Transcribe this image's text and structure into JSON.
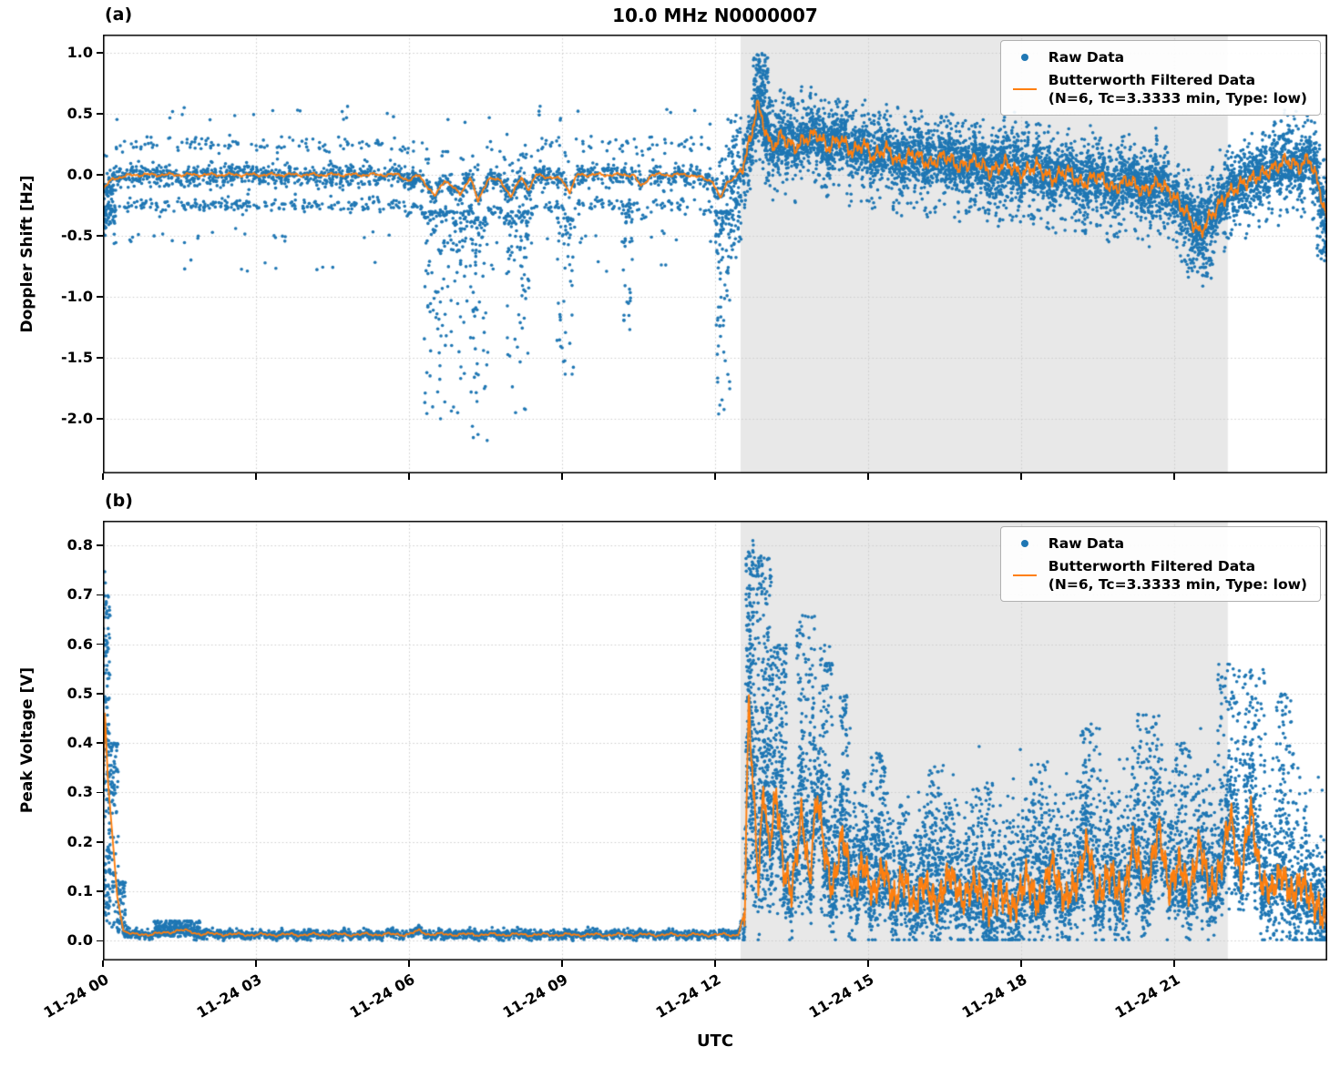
{
  "title": "10.0 MHz N0000007",
  "xlabel": "UTC",
  "panel_a_label": "(a)",
  "panel_b_label": "(b)",
  "legend": {
    "raw_label": "Raw Data",
    "filtered_label": "Butterworth Filtered Data",
    "filtered_sublabel": "(N=6, Tc=3.3333 min, Type: low)"
  },
  "colors": {
    "raw": "#1f77b4",
    "filtered": "#ff7f0e",
    "shade": "#e8e8e8",
    "grid": "#cccccc",
    "spine": "#000000"
  },
  "chart_data": [
    {
      "id": "a",
      "type": "scatter",
      "title": "10.0 MHz N0000007",
      "ylabel": "Doppler Shift [Hz]",
      "xlim": [
        0,
        24
      ],
      "ylim": [
        -2.45,
        1.15
      ],
      "yticks": [
        {
          "v": 1.0,
          "label": "1.0"
        },
        {
          "v": 0.5,
          "label": "0.5"
        },
        {
          "v": 0.0,
          "label": "0.0"
        },
        {
          "v": -0.5,
          "label": "-0.5"
        },
        {
          "v": -1.0,
          "label": "-1.0"
        },
        {
          "v": -1.5,
          "label": "-1.5"
        },
        {
          "v": -2.0,
          "label": "-2.0"
        }
      ],
      "xticks": [
        {
          "v": 0,
          "label": "11-24 00"
        },
        {
          "v": 3,
          "label": "11-24 03"
        },
        {
          "v": 6,
          "label": "11-24 06"
        },
        {
          "v": 9,
          "label": "11-24 09"
        },
        {
          "v": 12,
          "label": "11-24 12"
        },
        {
          "v": 15,
          "label": "11-24 15"
        },
        {
          "v": 18,
          "label": "11-24 18"
        },
        {
          "v": 21,
          "label": "11-24 21"
        }
      ],
      "show_xtick_labels": false,
      "shade": {
        "x0": 12.5,
        "x1": 22.05
      },
      "seed": 42,
      "line": [
        [
          0,
          -0.12
        ],
        [
          0.2,
          -0.03
        ],
        [
          0.6,
          0.0
        ],
        [
          5.8,
          0.0
        ],
        [
          6.0,
          -0.05
        ],
        [
          6.2,
          0.0
        ],
        [
          6.5,
          -0.18
        ],
        [
          6.7,
          -0.04
        ],
        [
          7.0,
          -0.16
        ],
        [
          7.2,
          -0.02
        ],
        [
          7.35,
          -0.22
        ],
        [
          7.55,
          -0.03
        ],
        [
          7.8,
          -0.05
        ],
        [
          8.0,
          -0.18
        ],
        [
          8.2,
          -0.02
        ],
        [
          8.35,
          -0.12
        ],
        [
          8.5,
          0.0
        ],
        [
          9.0,
          -0.04
        ],
        [
          9.15,
          -0.14
        ],
        [
          9.3,
          0.0
        ],
        [
          10.4,
          0.0
        ],
        [
          10.55,
          -0.1
        ],
        [
          10.75,
          0.0
        ],
        [
          11.5,
          0.0
        ],
        [
          11.95,
          -0.05
        ],
        [
          12.1,
          -0.2
        ],
        [
          12.25,
          -0.05
        ],
        [
          12.4,
          -0.02
        ],
        [
          12.55,
          0.08
        ],
        [
          12.7,
          0.3
        ],
        [
          12.82,
          0.58
        ],
        [
          12.95,
          0.42
        ],
        [
          13.1,
          0.22
        ],
        [
          13.3,
          0.32
        ],
        [
          13.55,
          0.22
        ],
        [
          13.8,
          0.3
        ],
        [
          14.0,
          0.34
        ],
        [
          14.2,
          0.22
        ],
        [
          14.45,
          0.3
        ],
        [
          14.7,
          0.18
        ],
        [
          14.9,
          0.26
        ],
        [
          15.1,
          0.14
        ],
        [
          15.35,
          0.22
        ],
        [
          15.6,
          0.1
        ],
        [
          15.9,
          0.18
        ],
        [
          16.2,
          0.08
        ],
        [
          16.5,
          0.16
        ],
        [
          16.8,
          0.06
        ],
        [
          17.1,
          0.12
        ],
        [
          17.4,
          0.02
        ],
        [
          17.7,
          0.1
        ],
        [
          18.0,
          0.0
        ],
        [
          18.3,
          0.08
        ],
        [
          18.6,
          -0.04
        ],
        [
          18.9,
          0.04
        ],
        [
          19.2,
          -0.08
        ],
        [
          19.5,
          0.0
        ],
        [
          19.8,
          -0.12
        ],
        [
          20.1,
          -0.04
        ],
        [
          20.4,
          -0.14
        ],
        [
          20.7,
          -0.06
        ],
        [
          21.0,
          -0.18
        ],
        [
          21.25,
          -0.32
        ],
        [
          21.5,
          -0.48
        ],
        [
          21.75,
          -0.32
        ],
        [
          22.0,
          -0.18
        ],
        [
          22.3,
          -0.08
        ],
        [
          22.6,
          -0.02
        ],
        [
          22.9,
          0.04
        ],
        [
          23.2,
          0.12
        ],
        [
          23.45,
          0.06
        ],
        [
          23.65,
          0.14
        ],
        [
          23.8,
          -0.05
        ],
        [
          23.9,
          -0.2
        ],
        [
          24,
          -0.38
        ]
      ],
      "wiggle": [
        {
          "t0": 0,
          "t1": 12.5,
          "amp": 0.013,
          "period": 0.4
        },
        {
          "t0": 12.5,
          "t1": 24,
          "amp": 0.055,
          "period": 0.21
        }
      ],
      "scatter": [
        {
          "t0": 0,
          "t1": 12.55,
          "n": 2300,
          "sigma": 0.045,
          "bands": [
            {
              "off": -0.25,
              "frac": 0.2
            },
            {
              "off": 0.25,
              "frac": 0.09
            },
            {
              "off": -0.5,
              "frac": 0.025
            },
            {
              "off": 0.5,
              "frac": 0.012
            },
            {
              "off": -0.75,
              "frac": 0.006
            }
          ]
        },
        {
          "t0": 12.55,
          "t1": 24,
          "n": 6500,
          "sigma": 0.12,
          "bands": [
            {
              "off": 0.33,
              "frac": 0.03
            },
            {
              "off": -0.38,
              "frac": 0.03
            }
          ]
        }
      ],
      "clusters": [
        {
          "t0": 0.0,
          "t1": 0.25,
          "vmin": -0.5,
          "vmax": -0.08,
          "n": 70,
          "bias": 1.2
        },
        {
          "t0": 6.3,
          "t1": 7.15,
          "vmin": -2.05,
          "vmax": -0.3,
          "n": 130,
          "bias": 2.2
        },
        {
          "t0": 7.2,
          "t1": 7.55,
          "vmin": -2.32,
          "vmax": -0.35,
          "n": 70,
          "bias": 2.0
        },
        {
          "t0": 7.9,
          "t1": 8.35,
          "vmin": -2.0,
          "vmax": -0.3,
          "n": 80,
          "bias": 2.2
        },
        {
          "t0": 8.9,
          "t1": 9.25,
          "vmin": -1.65,
          "vmax": -0.35,
          "n": 50,
          "bias": 2.0
        },
        {
          "t0": 10.2,
          "t1": 10.4,
          "vmin": -1.35,
          "vmax": -0.3,
          "n": 30,
          "bias": 2.0
        },
        {
          "t0": 12.0,
          "t1": 12.3,
          "vmin": -2.0,
          "vmax": -0.3,
          "n": 90,
          "bias": 2.0
        },
        {
          "t0": 12.3,
          "t1": 12.52,
          "vmin": -0.7,
          "vmax": 0.5,
          "n": 70,
          "bias": 1.0
        },
        {
          "t0": 12.75,
          "t1": 13.05,
          "vmin": 0.3,
          "vmax": 1.0,
          "n": 130,
          "bias": 1.1
        },
        {
          "t0": 21.2,
          "t1": 21.8,
          "vmin": -0.85,
          "vmax": -0.2,
          "n": 90,
          "bias": 1.5
        },
        {
          "t0": 23.8,
          "t1": 24.0,
          "vmin": -0.75,
          "vmax": -0.1,
          "n": 50,
          "bias": 1.3
        }
      ]
    },
    {
      "id": "b",
      "type": "scatter",
      "ylabel": "Peak Voltage [V]",
      "xlim": [
        0,
        24
      ],
      "ylim": [
        -0.04,
        0.85
      ],
      "yticks": [
        {
          "v": 0.8,
          "label": "0.8"
        },
        {
          "v": 0.7,
          "label": "0.7"
        },
        {
          "v": 0.6,
          "label": "0.6"
        },
        {
          "v": 0.5,
          "label": "0.5"
        },
        {
          "v": 0.4,
          "label": "0.4"
        },
        {
          "v": 0.3,
          "label": "0.3"
        },
        {
          "v": 0.2,
          "label": "0.2"
        },
        {
          "v": 0.1,
          "label": "0.1"
        },
        {
          "v": 0.0,
          "label": "0.0"
        }
      ],
      "xticks": [
        {
          "v": 0,
          "label": "11-24 00"
        },
        {
          "v": 3,
          "label": "11-24 03"
        },
        {
          "v": 6,
          "label": "11-24 06"
        },
        {
          "v": 9,
          "label": "11-24 09"
        },
        {
          "v": 12,
          "label": "11-24 12"
        },
        {
          "v": 15,
          "label": "11-24 15"
        },
        {
          "v": 18,
          "label": "11-24 18"
        },
        {
          "v": 21,
          "label": "11-24 21"
        }
      ],
      "show_xtick_labels": true,
      "shade": {
        "x0": 12.5,
        "x1": 22.05
      },
      "seed": 7,
      "line": [
        [
          0,
          0.3
        ],
        [
          0.04,
          0.46
        ],
        [
          0.1,
          0.32
        ],
        [
          0.18,
          0.22
        ],
        [
          0.28,
          0.09
        ],
        [
          0.4,
          0.02
        ],
        [
          0.6,
          0.012
        ],
        [
          1.2,
          0.015
        ],
        [
          1.5,
          0.022
        ],
        [
          1.9,
          0.014
        ],
        [
          3.0,
          0.012
        ],
        [
          6.0,
          0.013
        ],
        [
          6.2,
          0.02
        ],
        [
          6.4,
          0.013
        ],
        [
          9.0,
          0.012
        ],
        [
          12.45,
          0.012
        ],
        [
          12.58,
          0.06
        ],
        [
          12.66,
          0.49
        ],
        [
          12.75,
          0.3
        ],
        [
          12.85,
          0.12
        ],
        [
          12.95,
          0.32
        ],
        [
          13.05,
          0.18
        ],
        [
          13.2,
          0.3
        ],
        [
          13.35,
          0.14
        ],
        [
          13.5,
          0.1
        ],
        [
          13.7,
          0.26
        ],
        [
          13.85,
          0.12
        ],
        [
          14.0,
          0.3
        ],
        [
          14.15,
          0.18
        ],
        [
          14.3,
          0.1
        ],
        [
          14.5,
          0.22
        ],
        [
          14.7,
          0.1
        ],
        [
          14.9,
          0.16
        ],
        [
          15.1,
          0.09
        ],
        [
          15.3,
          0.15
        ],
        [
          15.5,
          0.08
        ],
        [
          15.7,
          0.13
        ],
        [
          15.9,
          0.07
        ],
        [
          16.1,
          0.12
        ],
        [
          16.35,
          0.07
        ],
        [
          16.6,
          0.14
        ],
        [
          16.85,
          0.08
        ],
        [
          17.1,
          0.12
        ],
        [
          17.35,
          0.06
        ],
        [
          17.6,
          0.1
        ],
        [
          17.85,
          0.06
        ],
        [
          18.1,
          0.13
        ],
        [
          18.35,
          0.07
        ],
        [
          18.6,
          0.16
        ],
        [
          18.85,
          0.08
        ],
        [
          19.1,
          0.12
        ],
        [
          19.3,
          0.2
        ],
        [
          19.5,
          0.09
        ],
        [
          19.75,
          0.14
        ],
        [
          20.0,
          0.08
        ],
        [
          20.2,
          0.2
        ],
        [
          20.45,
          0.1
        ],
        [
          20.7,
          0.23
        ],
        [
          20.9,
          0.1
        ],
        [
          21.1,
          0.16
        ],
        [
          21.3,
          0.1
        ],
        [
          21.5,
          0.2
        ],
        [
          21.7,
          0.1
        ],
        [
          21.9,
          0.14
        ],
        [
          22.1,
          0.26
        ],
        [
          22.3,
          0.12
        ],
        [
          22.5,
          0.27
        ],
        [
          22.7,
          0.12
        ],
        [
          22.9,
          0.1
        ],
        [
          23.1,
          0.14
        ],
        [
          23.3,
          0.09
        ],
        [
          23.5,
          0.12
        ],
        [
          23.7,
          0.08
        ],
        [
          23.85,
          0.06
        ],
        [
          24,
          0.04
        ]
      ],
      "wiggle": [
        {
          "t0": 0.5,
          "t1": 12.5,
          "amp": 0.003,
          "period": 0.5
        },
        {
          "t0": 12.55,
          "t1": 24,
          "amp": 0.03,
          "period": 0.13
        }
      ],
      "scatter": [
        {
          "t0": 0.38,
          "t1": 12.55,
          "n": 2200,
          "sigma": 0.0045,
          "clampMin": 0.0
        },
        {
          "t0": 12.55,
          "t1": 24,
          "n": 6200,
          "sigma": 0.045,
          "asym": 1.9,
          "clampMin": 0.002
        }
      ],
      "clusters": [
        {
          "t0": 0.0,
          "t1": 0.14,
          "vmin": 0.04,
          "vmax": 0.75,
          "n": 160,
          "bias": 1.0
        },
        {
          "t0": 0.1,
          "t1": 0.3,
          "vmin": 0.02,
          "vmax": 0.4,
          "n": 110,
          "bias": 1.6
        },
        {
          "t0": 0.28,
          "t1": 0.45,
          "vmin": 0.01,
          "vmax": 0.12,
          "n": 60,
          "bias": 1.6
        },
        {
          "t0": 1.0,
          "t1": 1.9,
          "vmin": 0.008,
          "vmax": 0.04,
          "n": 140,
          "bias": 1.6
        },
        {
          "t0": 12.6,
          "t1": 12.75,
          "vmin": 0.1,
          "vmax": 0.81,
          "n": 160,
          "bias": 1.0
        },
        {
          "t0": 12.75,
          "t1": 13.1,
          "vmin": 0.06,
          "vmax": 0.78,
          "n": 240,
          "bias": 1.3
        },
        {
          "t0": 13.1,
          "t1": 13.4,
          "vmin": 0.05,
          "vmax": 0.6,
          "n": 150,
          "bias": 1.3
        },
        {
          "t0": 13.6,
          "t1": 13.95,
          "vmin": 0.05,
          "vmax": 0.66,
          "n": 130,
          "bias": 1.4
        },
        {
          "t0": 14.05,
          "t1": 14.3,
          "vmin": 0.05,
          "vmax": 0.6,
          "n": 90,
          "bias": 1.4
        },
        {
          "t0": 14.45,
          "t1": 14.65,
          "vmin": 0.05,
          "vmax": 0.5,
          "n": 60,
          "bias": 1.4
        },
        {
          "t0": 15.05,
          "t1": 15.35,
          "vmin": 0.05,
          "vmax": 0.38,
          "n": 60,
          "bias": 1.3
        },
        {
          "t0": 16.15,
          "t1": 16.5,
          "vmin": 0.05,
          "vmax": 0.36,
          "n": 60,
          "bias": 1.3
        },
        {
          "t0": 17.15,
          "t1": 17.45,
          "vmin": 0.05,
          "vmax": 0.32,
          "n": 50,
          "bias": 1.3
        },
        {
          "t0": 18.15,
          "t1": 18.5,
          "vmin": 0.05,
          "vmax": 0.36,
          "n": 60,
          "bias": 1.3
        },
        {
          "t0": 19.2,
          "t1": 19.55,
          "vmin": 0.05,
          "vmax": 0.44,
          "n": 70,
          "bias": 1.3
        },
        {
          "t0": 20.25,
          "t1": 20.7,
          "vmin": 0.05,
          "vmax": 0.46,
          "n": 80,
          "bias": 1.3
        },
        {
          "t0": 21.0,
          "t1": 21.35,
          "vmin": 0.05,
          "vmax": 0.4,
          "n": 60,
          "bias": 1.3
        },
        {
          "t0": 21.85,
          "t1": 22.3,
          "vmin": 0.06,
          "vmax": 0.56,
          "n": 110,
          "bias": 1.2
        },
        {
          "t0": 22.35,
          "t1": 22.8,
          "vmin": 0.06,
          "vmax": 0.55,
          "n": 110,
          "bias": 1.2
        },
        {
          "t0": 23.0,
          "t1": 23.35,
          "vmin": 0.05,
          "vmax": 0.5,
          "n": 80,
          "bias": 1.3
        }
      ]
    }
  ]
}
